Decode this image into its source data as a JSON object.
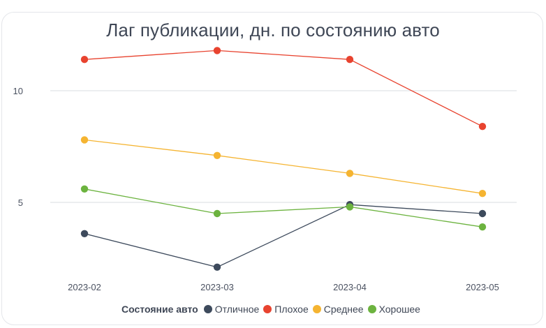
{
  "chart_data": {
    "type": "line",
    "title": "Лаг публикации, дн. по состоянию авто",
    "categories": [
      "2023-02",
      "2023-03",
      "2023-04",
      "2023-05"
    ],
    "y_ticks": [
      "5",
      "10"
    ],
    "ylim": [
      1.5,
      12.5
    ],
    "grid": true,
    "legend_title": "Состояние авто",
    "legend_position": "bottom",
    "series": [
      {
        "name": "Отличное",
        "color": "#3d4a5c",
        "values": [
          3.6,
          2.1,
          4.9,
          4.5
        ]
      },
      {
        "name": "Плохое",
        "color": "#e8432f",
        "values": [
          11.4,
          11.8,
          11.4,
          8.4
        ]
      },
      {
        "name": "Среднее",
        "color": "#f5b431",
        "values": [
          7.8,
          7.1,
          6.3,
          5.4
        ]
      },
      {
        "name": "Хорошее",
        "color": "#6cb33f",
        "values": [
          5.6,
          4.5,
          4.8,
          3.9
        ]
      }
    ]
  }
}
